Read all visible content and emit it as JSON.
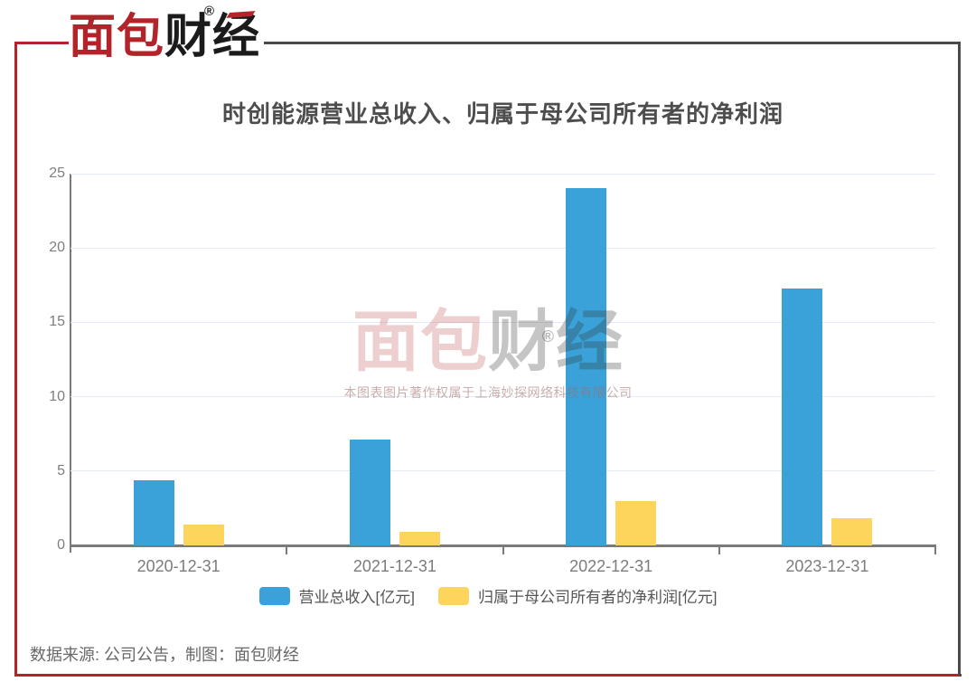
{
  "header": {
    "logo_red": "面包",
    "logo_black": "财经",
    "registered_mark": "®"
  },
  "chart": {
    "title": "时创能源营业总收入、归属于母公司所有者的净利润"
  },
  "chart_data": {
    "type": "bar",
    "categories": [
      "2020-12-31",
      "2021-12-31",
      "2022-12-31",
      "2023-12-31"
    ],
    "series": [
      {
        "name": "营业总收入[亿元]",
        "color": "#3AA2D9",
        "values": [
          4.4,
          7.1,
          24.0,
          17.3
        ]
      },
      {
        "name": "归属于母公司所有者的净利润[亿元]",
        "color": "#FDD45C",
        "values": [
          1.4,
          0.9,
          3.0,
          1.8
        ]
      }
    ],
    "title": "时创能源营业总收入、归属于母公司所有者的净利润",
    "xlabel": "",
    "ylabel": "",
    "ylim": [
      0,
      25
    ],
    "yticks": [
      0,
      5,
      10,
      15,
      20,
      25
    ],
    "grid": true,
    "legend_position": "bottom"
  },
  "watermark": {
    "logo_red": "面包",
    "logo_black": "财经",
    "registered_mark": "®",
    "caption": "本图表图片著作权属于上海妙探网络科技有限公司"
  },
  "footer": {
    "source": "数据来源: 公司公告，制图：面包财经"
  },
  "colors": {
    "brand_red": "#B3232A",
    "revenue_blue": "#3AA2D9",
    "profit_yellow": "#FDD45C",
    "axis_gray": "#7A7A7A",
    "grid_line": "#E4EBF3",
    "frame_dark": "#4A4A4A"
  }
}
